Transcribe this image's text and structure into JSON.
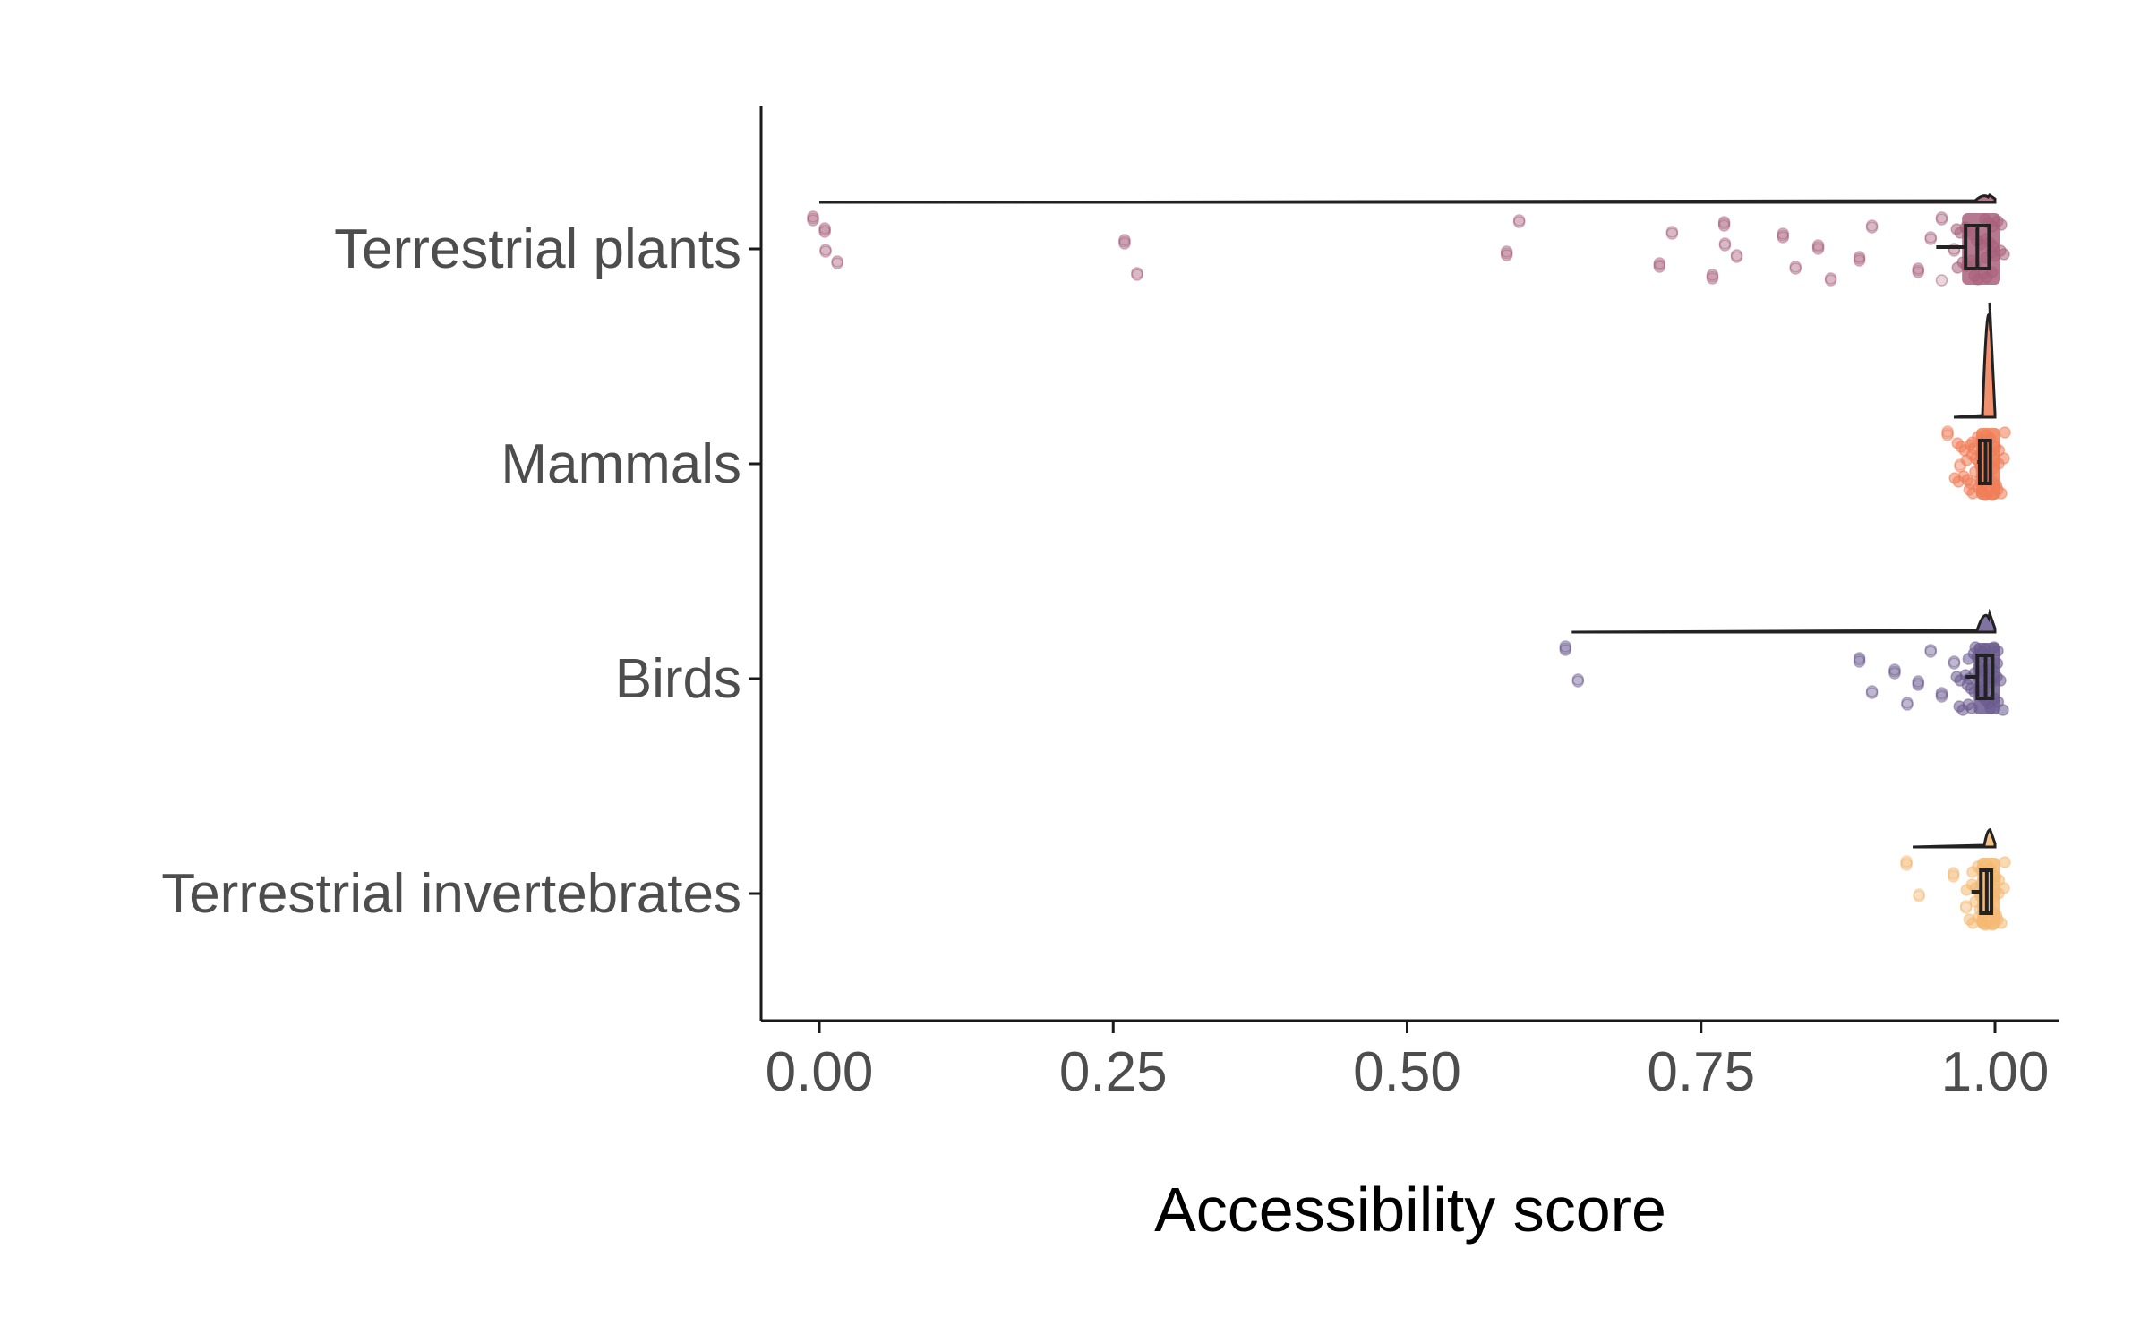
{
  "chart_data": {
    "type": "raincloud",
    "xlabel": "Accessibility score",
    "ylabel": "",
    "xlim": [
      -0.05,
      1.05
    ],
    "xticks": [
      0.0,
      0.25,
      0.5,
      0.75,
      1.0
    ],
    "xtick_labels": [
      "0.00",
      "0.25",
      "0.50",
      "0.75",
      "1.00"
    ],
    "grid": false,
    "legend": "none",
    "categories": [
      "Terrestrial plants",
      "Mammals",
      "Birds",
      "Terrestrial invertebrates"
    ],
    "series": [
      {
        "category": "Terrestrial plants",
        "color": "#a8607a",
        "min": 0.0,
        "q1": 0.975,
        "median": 0.985,
        "q3": 0.995,
        "max": 1.0,
        "whisker_low": 0.95,
        "points": [
          0.0,
          0.01,
          0.265,
          0.59,
          0.72,
          0.765,
          0.775,
          0.825,
          0.855,
          0.89,
          0.94,
          0.96,
          0.975,
          0.99,
          1.0
        ]
      },
      {
        "category": "Mammals",
        "color": "#f07c55",
        "min": 0.965,
        "q1": 0.987,
        "median": 0.992,
        "q3": 0.996,
        "max": 1.0,
        "whisker_low": 0.985,
        "points": [
          0.965,
          0.975,
          0.985,
          0.99,
          0.995,
          1.0
        ]
      },
      {
        "category": "Birds",
        "color": "#6a5a8e",
        "min": 0.64,
        "q1": 0.985,
        "median": 0.992,
        "q3": 0.998,
        "max": 1.0,
        "whisker_low": 0.975,
        "points": [
          0.64,
          0.89,
          0.92,
          0.94,
          0.96,
          0.975,
          0.985,
          0.995,
          1.0
        ]
      },
      {
        "category": "Terrestrial invertebrates",
        "color": "#f3b972",
        "min": 0.93,
        "q1": 0.988,
        "median": 0.993,
        "q3": 0.997,
        "max": 1.0,
        "whisker_low": 0.98,
        "points": [
          0.93,
          0.97,
          0.985,
          0.99,
          0.995,
          1.0
        ]
      }
    ]
  }
}
